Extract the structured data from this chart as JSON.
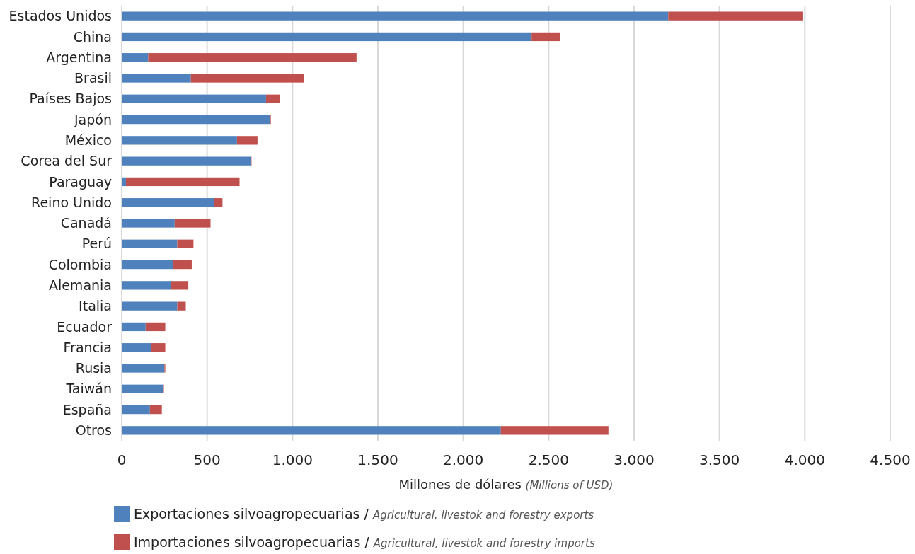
{
  "chart_data": {
    "type": "bar",
    "orientation": "horizontal",
    "stacked": true,
    "categories": [
      "Estados Unidos",
      "China",
      "Argentina",
      "Brasil",
      "Países Bajos",
      "Japón",
      "México",
      "Corea del Sur",
      "Paraguay",
      "Reino Unido",
      "Canadá",
      "Perú",
      "Colombia",
      "Alemania",
      "Italia",
      "Ecuador",
      "Francia",
      "Rusia",
      "Taiwán",
      "España",
      "Otros"
    ],
    "series": [
      {
        "name": "Exportaciones silvoagropecuarias / Agricultural, livestok and forestry exports",
        "color": "#4f81bd",
        "values": [
          3200,
          2400,
          155,
          405,
          845,
          870,
          675,
          755,
          25,
          540,
          310,
          325,
          300,
          290,
          325,
          140,
          170,
          250,
          245,
          165,
          2220
        ]
      },
      {
        "name": "Importaciones silvoagropecuarias / Agricultural, livestok and forestry imports",
        "color": "#c0504d",
        "values": [
          790,
          165,
          1220,
          660,
          80,
          3,
          120,
          5,
          665,
          50,
          210,
          95,
          110,
          100,
          50,
          115,
          85,
          5,
          2,
          70,
          630
        ]
      }
    ],
    "xlabel": "Millones de dólares (Millions of USD)",
    "xlim": [
      0,
      4500
    ],
    "xticks": [
      0,
      500,
      {
        "value": 1000,
        "label": "1.000"
      },
      {
        "value": 1500,
        "label": "1.500"
      },
      {
        "value": 2000,
        "label": "2.000"
      },
      {
        "value": 2500,
        "label": "2.500"
      },
      {
        "value": 3000,
        "label": "3.000"
      },
      {
        "value": 3500,
        "label": "3.500"
      },
      {
        "value": 4000,
        "label": "4.000"
      },
      {
        "value": 4500,
        "label": "4.500"
      }
    ],
    "grid": "x",
    "legend": "bottom left"
  }
}
